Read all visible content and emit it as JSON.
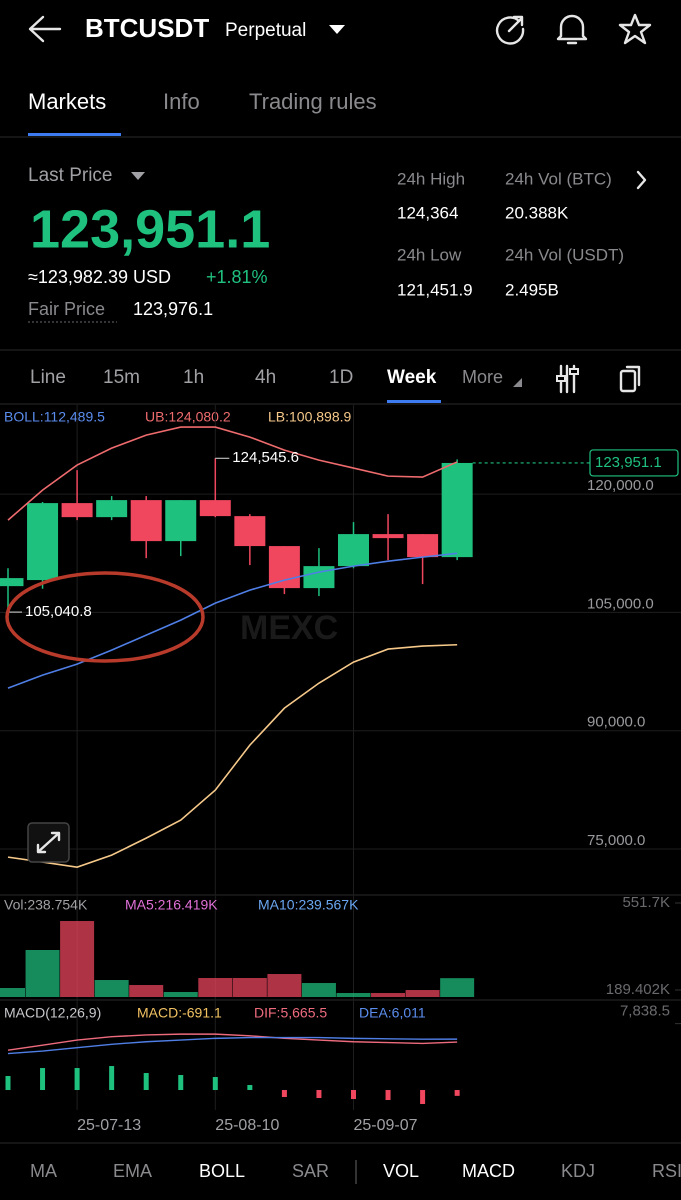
{
  "header": {
    "symbol": "BTCUSDT",
    "contract": "Perpetual"
  },
  "tabs": [
    "Markets",
    "Info",
    "Trading rules"
  ],
  "price": {
    "label": "Last Price",
    "last": "123,951.1",
    "approx": "≈123,982.39 USD",
    "change": "+1.81%",
    "fair_label": "Fair Price",
    "fair": "123,976.1"
  },
  "stats": [
    {
      "label": "24h High",
      "value": "124,364"
    },
    {
      "label": "24h Vol (BTC)",
      "value": "20.388K"
    },
    {
      "label": "24h Low",
      "value": "121,451.9"
    },
    {
      "label": "24h Vol (USDT)",
      "value": "2.495B"
    }
  ],
  "intervals": [
    "Line",
    "15m",
    "1h",
    "4h",
    "1D",
    "Week",
    "More"
  ],
  "chart_data": {
    "type": "candlestick",
    "watermark": "MEXC",
    "legend": [
      "BOLL:112,489.5",
      "UB:124,080.2",
      "LB:100,898.9"
    ],
    "categories": [
      null,
      null,
      "25-07-13",
      null,
      null,
      null,
      "25-08-10",
      null,
      null,
      null,
      "25-09-07",
      null,
      null,
      null
    ],
    "open": [
      108330,
      109100,
      118860,
      117080,
      119240,
      114040,
      119240,
      117210,
      113410,
      108080,
      110870,
      114930,
      114930,
      112010
    ],
    "high": [
      110600,
      119000,
      123040,
      119750,
      119750,
      119240,
      124545.6,
      117460,
      113410,
      113150,
      116450,
      117460,
      114930,
      124400
    ],
    "low": [
      105040.8,
      108000,
      116700,
      116700,
      111880,
      112140,
      117080,
      111000,
      107320,
      107070,
      110600,
      111630,
      108590,
      111630
    ],
    "close": [
      109350,
      118860,
      117080,
      119240,
      114040,
      119240,
      117210,
      113410,
      108080,
      110870,
      114930,
      114420,
      112010,
      123951.1
    ],
    "up_color": "#1fc17f",
    "down_color": "#f0475f",
    "series": [
      {
        "name": "UB",
        "color": "#ee6b6e",
        "values": [
          116700,
          120510,
          123680,
          125830,
          127480,
          128500,
          128500,
          127230,
          125580,
          124310,
          123300,
          122280,
          122160,
          124080.2
        ]
      },
      {
        "name": "BOLL",
        "color": "#4f7fe6",
        "values": [
          95400,
          97050,
          98440,
          100220,
          102120,
          104020,
          106180,
          107830,
          109090,
          110110,
          110870,
          111500,
          112010,
          112489.5
        ]
      },
      {
        "name": "LB",
        "color": "#f6c98a",
        "values": [
          73970,
          73340,
          72700,
          74220,
          76380,
          78660,
          82470,
          88170,
          92860,
          96030,
          98700,
          100350,
          100730,
          100898.9
        ]
      }
    ],
    "annotations": [
      {
        "value": 124545.6,
        "label": "124,545.6"
      },
      {
        "value": 105040.8,
        "label": "105,040.8"
      }
    ],
    "last_price": {
      "value": 123951.1,
      "label": "123,951.1"
    },
    "ylim": [
      69800,
      131300
    ],
    "yticks": [
      {
        "value": 120000,
        "label": "120,000.0"
      },
      {
        "value": 105000,
        "label": "105,000.0"
      },
      {
        "value": 90000,
        "label": "90,000.0"
      },
      {
        "value": 75000,
        "label": "75,000.0"
      }
    ],
    "grid": true,
    "volume": {
      "legend": [
        "Vol:238.754K",
        "MA5:216.419K",
        "MA10:239.567K"
      ],
      "values": [
        197700,
        356000,
        476700,
        231000,
        210200,
        181100,
        239400,
        239400,
        256000,
        218500,
        176900,
        176900,
        189400,
        238754
      ],
      "ylim": [
        160300,
        564200
      ],
      "yticks": [
        {
          "value": 551700,
          "label": "551.7K"
        },
        {
          "value": 189402,
          "label": "189.402K"
        }
      ]
    },
    "macd": {
      "legend": [
        "MACD(12,26,9)",
        "MACD:-691.1",
        "DIF:5,665.5",
        "DEA:6,011"
      ],
      "histogram": [
        1653,
        2597,
        2597,
        2833,
        2007,
        1771,
        1535,
        590,
        -826,
        -944,
        -1063,
        -1181,
        -1653,
        -691.1
      ],
      "dif": {
        "color": "#ee6b7e",
        "values": [
          4700,
          5300,
          5900,
          6300,
          6500,
          6600,
          6600,
          6400,
          6100,
          5900,
          5700,
          5600,
          5500,
          5665.5
        ]
      },
      "dea": {
        "color": "#4f7fe6",
        "values": [
          4300,
          4600,
          5000,
          5400,
          5700,
          5900,
          6100,
          6200,
          6200,
          6200,
          6100,
          6050,
          6000,
          6011
        ]
      },
      "ylim": [
        -2360,
        10040
      ],
      "yticks": [
        {
          "value": 7838.5,
          "label": "7,838.5"
        }
      ]
    }
  },
  "indicators": [
    "MA",
    "EMA",
    "BOLL",
    "SAR",
    "VOL",
    "MACD",
    "KDJ",
    "RSI"
  ]
}
